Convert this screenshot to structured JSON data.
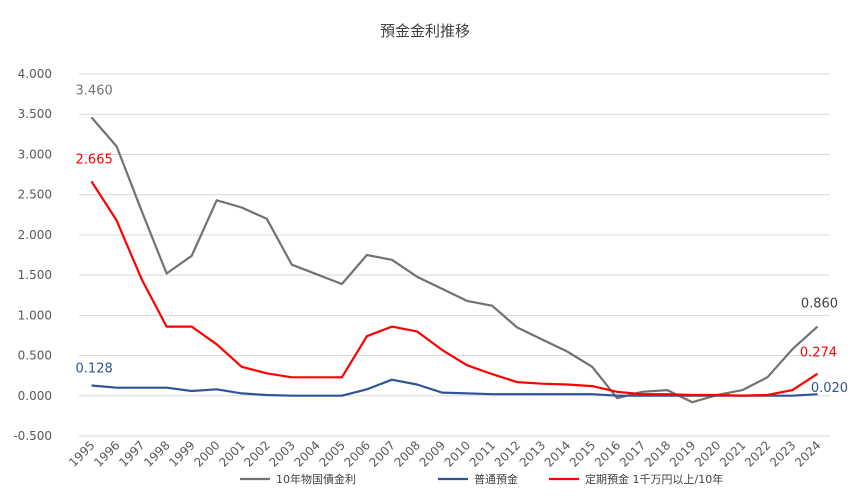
{
  "chart_data": {
    "type": "line",
    "title": "預金金利推移",
    "xlabel": "",
    "ylabel": "",
    "ylim": [
      -0.5,
      4.0
    ],
    "y_ticks": [
      "4.000",
      "3.500",
      "3.000",
      "2.500",
      "2.000",
      "1.500",
      "1.000",
      "0.500",
      "0.000",
      "-0.500"
    ],
    "grid": true,
    "legend_position": "bottom",
    "categories": [
      "1995",
      "1996",
      "1997",
      "1998",
      "1999",
      "2000",
      "2001",
      "2002",
      "2003",
      "2004",
      "2005",
      "2006",
      "2007",
      "2008",
      "2009",
      "2010",
      "2011",
      "2012",
      "2013",
      "2014",
      "2015",
      "2016",
      "2017",
      "2018",
      "2019",
      "2020",
      "2021",
      "2022",
      "2023",
      "2024"
    ],
    "series": [
      {
        "name": "10年物国債金利",
        "color": "#767171",
        "values": [
          3.46,
          3.1,
          2.3,
          1.52,
          1.74,
          2.43,
          2.34,
          2.2,
          1.63,
          1.51,
          1.39,
          1.75,
          1.69,
          1.48,
          1.33,
          1.18,
          1.12,
          0.85,
          0.7,
          0.55,
          0.36,
          -0.03,
          0.05,
          0.07,
          -0.08,
          0.01,
          0.07,
          0.23,
          0.58,
          0.86
        ]
      },
      {
        "name": "普通預金",
        "color": "#2F5597",
        "values": [
          0.128,
          0.1,
          0.1,
          0.1,
          0.06,
          0.08,
          0.03,
          0.01,
          0.001,
          0.001,
          0.001,
          0.08,
          0.2,
          0.14,
          0.04,
          0.03,
          0.02,
          0.02,
          0.02,
          0.02,
          0.02,
          0.001,
          0.001,
          0.001,
          0.001,
          0.001,
          0.001,
          0.001,
          0.001,
          0.02
        ]
      },
      {
        "name": "定期預金 1千万円以上/10年",
        "color": "#FF0000",
        "values": [
          2.665,
          2.18,
          1.45,
          0.86,
          0.86,
          0.64,
          0.36,
          0.28,
          0.23,
          0.23,
          0.23,
          0.74,
          0.86,
          0.8,
          0.57,
          0.38,
          0.27,
          0.17,
          0.15,
          0.14,
          0.12,
          0.05,
          0.02,
          0.02,
          0.01,
          0.01,
          0.002,
          0.01,
          0.07,
          0.274
        ]
      }
    ],
    "annotations": [
      {
        "text": "3.460",
        "series": 0,
        "index": 0,
        "color": "#767171"
      },
      {
        "text": "2.665",
        "series": 2,
        "index": 0,
        "color": "#FF0000"
      },
      {
        "text": "0.128",
        "series": 1,
        "index": 0,
        "color": "#2F5597"
      },
      {
        "text": "0.860",
        "series": 0,
        "index": 29,
        "color": "#404040"
      },
      {
        "text": "0.274",
        "series": 2,
        "index": 29,
        "color": "#FF0000"
      },
      {
        "text": "0.020",
        "series": 1,
        "index": 29,
        "color": "#2F5597"
      }
    ]
  }
}
